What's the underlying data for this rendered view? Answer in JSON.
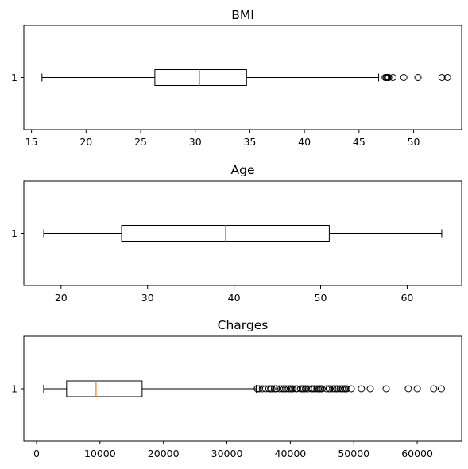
{
  "chart_data": [
    {
      "type": "boxplot",
      "title": "BMI",
      "orientation": "horizontal",
      "category_labels": [
        "1"
      ],
      "xlim": [
        14.3,
        54.4
      ],
      "xticks": [
        15,
        20,
        25,
        30,
        35,
        40,
        45,
        50
      ],
      "box": {
        "whisker_low": 15.96,
        "q1": 26.3,
        "median": 30.4,
        "q3": 34.7,
        "whisker_high": 46.8
      },
      "outliers": [
        47.4,
        47.5,
        47.6,
        47.7,
        47.7,
        48.1,
        49.1,
        50.4,
        52.6,
        53.1
      ],
      "colors": {
        "box": "#000000",
        "median": "#ff7f0e",
        "outlier": "#000000"
      }
    },
    {
      "type": "boxplot",
      "title": "Age",
      "orientation": "horizontal",
      "category_labels": [
        "1"
      ],
      "xlim": [
        15.7,
        66.3
      ],
      "xticks": [
        20,
        30,
        40,
        50,
        60
      ],
      "box": {
        "whisker_low": 18,
        "q1": 27,
        "median": 39,
        "q3": 51,
        "whisker_high": 64
      },
      "outliers": [],
      "colors": {
        "box": "#000000",
        "median": "#ff7f0e",
        "outlier": "#000000"
      }
    },
    {
      "type": "boxplot",
      "title": "Charges",
      "orientation": "horizontal",
      "category_labels": [
        "1"
      ],
      "xlim": [
        -2000,
        67000
      ],
      "xticks": [
        0,
        10000,
        20000,
        30000,
        40000,
        50000,
        60000
      ],
      "box": {
        "whisker_low": 1122,
        "q1": 4740,
        "median": 9382,
        "q3": 16640,
        "whisker_high": 34620
      },
      "outliers": [
        34800,
        35100,
        35600,
        36100,
        36600,
        36900,
        37100,
        37500,
        37800,
        38300,
        38700,
        39000,
        39300,
        39700,
        40000,
        40200,
        40400,
        40900,
        41000,
        41600,
        41900,
        42100,
        42400,
        42800,
        43300,
        43500,
        43800,
        44200,
        44400,
        44600,
        44800,
        45000,
        45700,
        46100,
        46200,
        46700,
        47000,
        47300,
        47500,
        47900,
        48200,
        48500,
        48700,
        48900,
        49600,
        51200,
        52600,
        55100,
        58600,
        60000,
        62600,
        63800
      ],
      "colors": {
        "box": "#000000",
        "median": "#ff7f0e",
        "outlier": "#000000"
      }
    }
  ]
}
